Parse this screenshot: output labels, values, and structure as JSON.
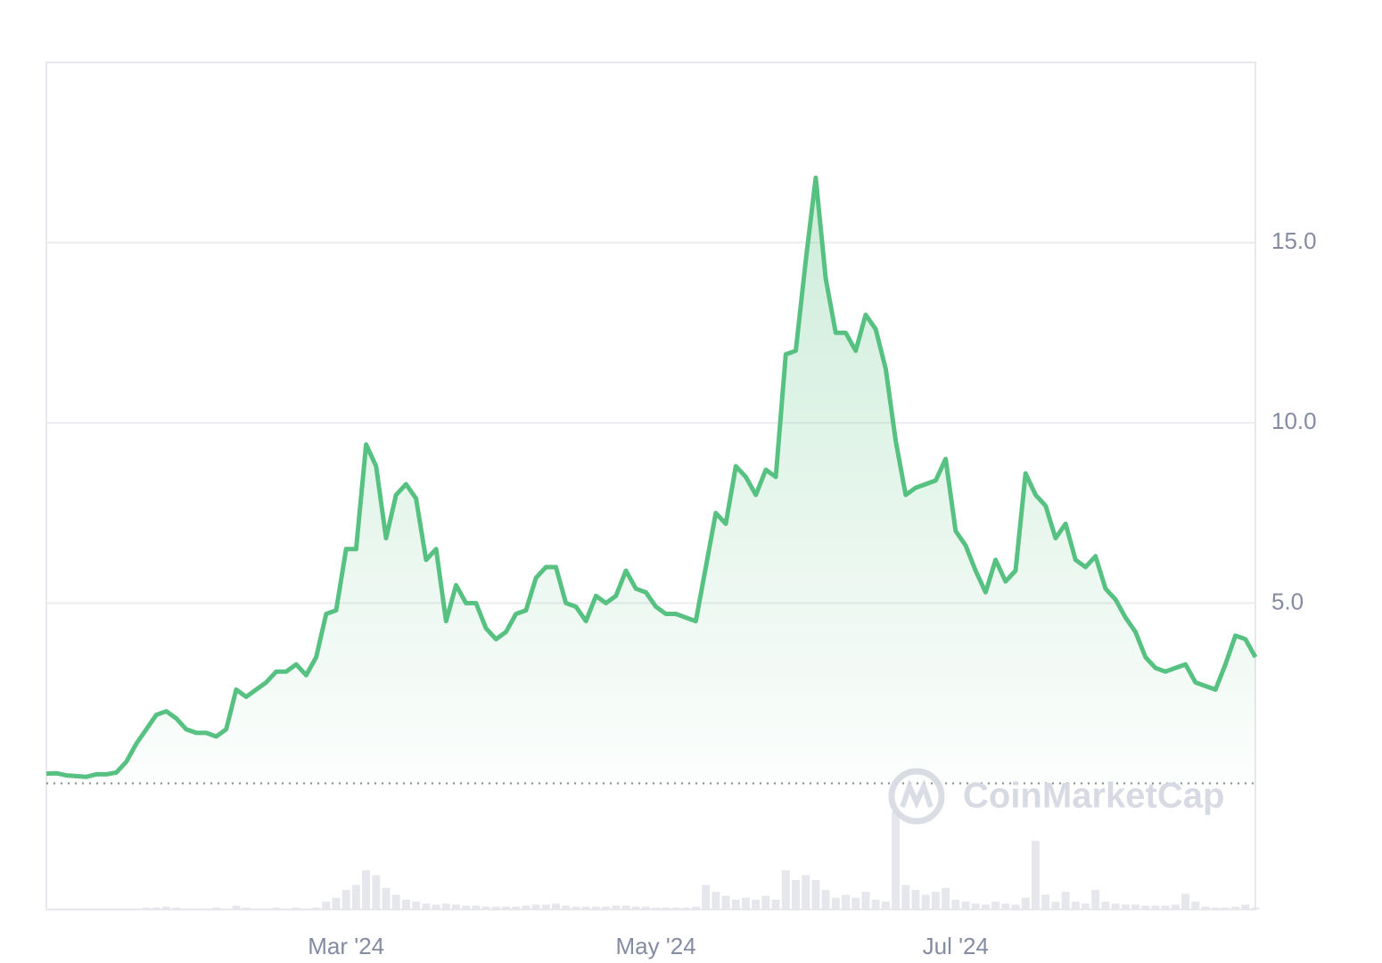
{
  "chart_data": {
    "type": "area",
    "categories": [
      null,
      null,
      null,
      null,
      null,
      null,
      null,
      null,
      null,
      null,
      null,
      null,
      null,
      null,
      null,
      null,
      null,
      null,
      null,
      null,
      null,
      null,
      null,
      null,
      null,
      null,
      null,
      null,
      null,
      null,
      "Mar '24",
      null,
      null,
      null,
      null,
      null,
      null,
      null,
      null,
      null,
      null,
      null,
      null,
      null,
      null,
      null,
      null,
      null,
      null,
      null,
      null,
      null,
      null,
      null,
      null,
      null,
      null,
      null,
      null,
      null,
      null,
      "May '24",
      null,
      null,
      null,
      null,
      null,
      null,
      null,
      null,
      null,
      null,
      null,
      null,
      null,
      null,
      null,
      null,
      null,
      null,
      null,
      null,
      null,
      null,
      null,
      null,
      null,
      null,
      null,
      null,
      null,
      "Jul '24",
      null,
      null,
      null,
      null,
      null,
      null,
      null,
      null,
      null,
      null,
      null,
      null,
      null,
      null,
      null,
      null,
      null,
      null,
      null,
      null,
      null,
      null,
      null,
      null,
      null,
      null,
      null,
      null,
      null,
      null
    ],
    "values": [
      0.27,
      0.28,
      0.22,
      0.2,
      0.18,
      0.25,
      0.25,
      0.3,
      0.6,
      1.1,
      1.5,
      1.9,
      2.0,
      1.8,
      1.5,
      1.4,
      1.4,
      1.3,
      1.5,
      2.6,
      2.4,
      2.6,
      2.8,
      3.1,
      3.1,
      3.3,
      3.0,
      3.5,
      4.7,
      4.8,
      6.5,
      6.5,
      9.4,
      8.8,
      6.8,
      8.0,
      8.3,
      7.9,
      6.2,
      6.5,
      4.5,
      5.5,
      5.0,
      5.0,
      4.3,
      4.0,
      4.2,
      4.7,
      4.8,
      5.7,
      6.0,
      6.0,
      5.0,
      4.9,
      4.5,
      5.2,
      5.0,
      5.2,
      5.9,
      5.4,
      5.3,
      4.9,
      4.7,
      4.7,
      4.6,
      4.5,
      6.0,
      7.5,
      7.2,
      8.8,
      8.5,
      8.0,
      8.7,
      8.5,
      11.9,
      12.0,
      14.5,
      16.8,
      14.0,
      12.5,
      12.5,
      12.0,
      13.0,
      12.6,
      11.5,
      9.5,
      8.0,
      8.2,
      8.3,
      8.4,
      9.0,
      7.0,
      6.6,
      5.9,
      5.3,
      6.2,
      5.6,
      5.9,
      8.6,
      8.0,
      7.7,
      6.8,
      7.2,
      6.2,
      6.0,
      6.3,
      5.4,
      5.1,
      4.6,
      4.2,
      3.5,
      3.2,
      3.1,
      3.2,
      3.3,
      2.8,
      2.7,
      2.6,
      3.3,
      4.1,
      4.0,
      3.5
    ],
    "volume": [
      0,
      0,
      0,
      0,
      0,
      0,
      0,
      0,
      0,
      1,
      2,
      2,
      3,
      2,
      1,
      1,
      1,
      2,
      1,
      4,
      2,
      1,
      1,
      2,
      1,
      2,
      1,
      2,
      8,
      12,
      20,
      25,
      40,
      35,
      22,
      15,
      10,
      8,
      6,
      5,
      6,
      5,
      4,
      4,
      3,
      3,
      3,
      3,
      4,
      5,
      5,
      6,
      4,
      3,
      3,
      3,
      3,
      4,
      4,
      3,
      3,
      2,
      2,
      2,
      2,
      3,
      25,
      18,
      14,
      10,
      12,
      10,
      14,
      10,
      40,
      30,
      35,
      30,
      20,
      12,
      15,
      12,
      18,
      10,
      8,
      100,
      25,
      20,
      15,
      18,
      22,
      10,
      8,
      6,
      5,
      8,
      6,
      5,
      12,
      70,
      15,
      8,
      18,
      8,
      6,
      20,
      8,
      6,
      5,
      5,
      4,
      4,
      4,
      5,
      16,
      8,
      3,
      2,
      2,
      3,
      5,
      2
    ],
    "color": "#57c182",
    "ylim": [
      -3.5,
      20
    ],
    "yticks": [
      {
        "value": 5,
        "label": "5.0"
      },
      {
        "value": 10,
        "label": "10.0"
      },
      {
        "value": 15,
        "label": "15.0"
      }
    ],
    "grid": true,
    "watermark": "CoinMarketCap"
  }
}
